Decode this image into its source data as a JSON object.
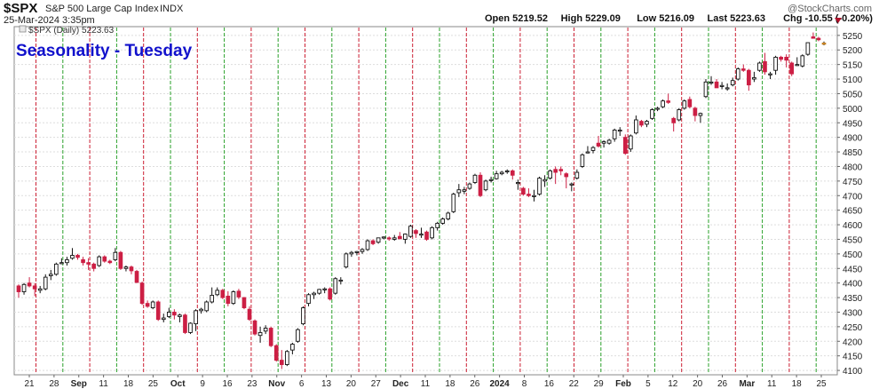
{
  "header": {
    "symbol": "$SPX",
    "name": "S&P 500 Large Cap Index",
    "exchange": "INDX",
    "date_time": "25-Mar-2024 3:35pm",
    "watermark": "@StockCharts.com",
    "stats": [
      {
        "label": "Open",
        "value": "5219.52"
      },
      {
        "label": "High",
        "value": "5229.09"
      },
      {
        "label": "Low",
        "value": "5216.09"
      },
      {
        "label": "Last",
        "value": "5223.63"
      },
      {
        "label": "Chg",
        "value": "-10.55 (-0.20%)"
      }
    ]
  },
  "chart_title": "Seasonality - Tuesday",
  "legend_text": "$SPX (Daily) 5223.63",
  "colors": {
    "up": "#ffffff",
    "down": "#cc1f44",
    "last_candle": "#e8a33c",
    "green_line": "#2aa12a",
    "red_line": "#cc1f33",
    "title": "#1111cc",
    "chg_arrow": "#b0102a"
  },
  "chart_data": {
    "type": "candlestick",
    "title": "Seasonality - Tuesday",
    "ylim": [
      4085,
      5280
    ],
    "y_ticks": [
      4100,
      4150,
      4200,
      4250,
      4300,
      4350,
      4400,
      4450,
      4500,
      4550,
      4600,
      4650,
      4700,
      4750,
      4800,
      4850,
      4900,
      4950,
      5000,
      5050,
      5100,
      5150,
      5200,
      5250
    ],
    "x_tick_labels": [
      "21",
      "28",
      "Sep",
      "11",
      "18",
      "25",
      "Oct",
      "9",
      "16",
      "23",
      "Nov",
      "6",
      "13",
      "20",
      "27",
      "Dec",
      "11",
      "18",
      "26",
      "2024",
      "8",
      "16",
      "22",
      "29",
      "Feb",
      "5",
      "12",
      "20",
      "26",
      "Mar",
      "11",
      "18",
      "25"
    ],
    "bold_x_labels": [
      "Sep",
      "Oct",
      "Nov",
      "Dec",
      "2024",
      "Feb",
      "Mar"
    ],
    "vertical_lines": {
      "green_color": "#2aa12a",
      "red_color": "#cc1f33",
      "pattern": "alternating dashed green and red lines at weekly intervals"
    },
    "candles": [
      [
        "Aug 18",
        4390,
        4395,
        4350,
        4370
      ],
      [
        "Aug 21",
        4370,
        4400,
        4360,
        4395
      ],
      [
        "Aug 22",
        4400,
        4420,
        4385,
        4390
      ],
      [
        "Aug 23",
        4390,
        4400,
        4355,
        4380
      ],
      [
        "Aug 24",
        4375,
        4390,
        4365,
        4380
      ],
      [
        "Aug 25",
        4380,
        4430,
        4375,
        4420
      ],
      [
        "Aug 28",
        4425,
        4445,
        4410,
        4430
      ],
      [
        "Aug 29",
        4430,
        4470,
        4425,
        4465
      ],
      [
        "Aug 30",
        4470,
        4485,
        4465,
        4470
      ],
      [
        "Aug 31",
        4470,
        4490,
        4460,
        4480
      ],
      [
        "Sep 1",
        4485,
        4520,
        4480,
        4495
      ],
      [
        "Sep 5",
        4495,
        4500,
        4480,
        4488
      ],
      [
        "Sep 6",
        4480,
        4490,
        4460,
        4470
      ],
      [
        "Sep 7",
        4470,
        4485,
        4445,
        4465
      ],
      [
        "Sep 8",
        4465,
        4470,
        4440,
        4450
      ],
      [
        "Sep 11",
        4460,
        4495,
        4455,
        4490
      ],
      [
        "Sep 12",
        4490,
        4495,
        4470,
        4475
      ],
      [
        "Sep 13",
        4475,
        4480,
        4465,
        4470
      ],
      [
        "Sep 14",
        4480,
        4520,
        4475,
        4505
      ],
      [
        "Sep 15",
        4505,
        4510,
        4445,
        4450
      ],
      [
        "Sep 18",
        4450,
        4460,
        4440,
        4455
      ],
      [
        "Sep 19",
        4455,
        4460,
        4430,
        4442
      ],
      [
        "Sep 20",
        4440,
        4445,
        4400,
        4402
      ],
      [
        "Sep 21",
        4400,
        4405,
        4325,
        4330
      ],
      [
        "Sep 22",
        4330,
        4340,
        4315,
        4320
      ],
      [
        "Sep 25",
        4315,
        4340,
        4310,
        4335
      ],
      [
        "Sep 26",
        4335,
        4340,
        4270,
        4275
      ],
      [
        "Sep 27",
        4275,
        4295,
        4265,
        4280
      ],
      [
        "Sep 28",
        4285,
        4315,
        4280,
        4300
      ],
      [
        "Sep 29",
        4300,
        4310,
        4275,
        4290
      ],
      [
        "Oct 2",
        4285,
        4295,
        4265,
        4290
      ],
      [
        "Oct 3",
        4290,
        4295,
        4225,
        4230
      ],
      [
        "Oct 4",
        4230,
        4265,
        4225,
        4262
      ],
      [
        "Oct 5",
        4260,
        4310,
        4235,
        4305
      ],
      [
        "Oct 6",
        4305,
        4315,
        4295,
        4310
      ],
      [
        "Oct 9",
        4305,
        4340,
        4300,
        4335
      ],
      [
        "Oct 10",
        4335,
        4385,
        4330,
        4358
      ],
      [
        "Oct 11",
        4360,
        4385,
        4355,
        4375
      ],
      [
        "Oct 12",
        4375,
        4380,
        4345,
        4350
      ],
      [
        "Oct 13",
        4355,
        4372,
        4320,
        4330
      ],
      [
        "Oct 16",
        4330,
        4375,
        4325,
        4370
      ],
      [
        "Oct 17",
        4372,
        4380,
        4345,
        4352
      ],
      [
        "Oct 18",
        4350,
        4352,
        4310,
        4315
      ],
      [
        "Oct 19",
        4310,
        4320,
        4270,
        4275
      ],
      [
        "Oct 20",
        4270,
        4275,
        4220,
        4225
      ],
      [
        "Oct 23",
        4220,
        4250,
        4195,
        4230
      ],
      [
        "Oct 24",
        4235,
        4255,
        4225,
        4245
      ],
      [
        "Oct 25",
        4245,
        4250,
        4180,
        4185
      ],
      [
        "Oct 26",
        4185,
        4190,
        4130,
        4135
      ],
      [
        "Oct 27",
        4135,
        4170,
        4105,
        4120
      ],
      [
        "Oct 30",
        4120,
        4170,
        4115,
        4165
      ],
      [
        "Oct 31",
        4170,
        4195,
        4155,
        4190
      ],
      [
        "Nov 1",
        4200,
        4245,
        4195,
        4240
      ],
      [
        "Nov 2",
        4260,
        4320,
        4255,
        4315
      ],
      [
        "Nov 3",
        4330,
        4365,
        4320,
        4360
      ],
      [
        "Nov 6",
        4360,
        4370,
        4345,
        4365
      ],
      [
        "Nov 7",
        4365,
        4380,
        4360,
        4378
      ],
      [
        "Nov 8",
        4380,
        4385,
        4365,
        4380
      ],
      [
        "Nov 9",
        4380,
        4385,
        4340,
        4345
      ],
      [
        "Nov 10",
        4365,
        4420,
        4360,
        4415
      ],
      [
        "Nov 13",
        4410,
        4420,
        4395,
        4410
      ],
      [
        "Nov 14",
        4455,
        4505,
        4450,
        4500
      ],
      [
        "Nov 15",
        4500,
        4510,
        4490,
        4505
      ],
      [
        "Nov 16",
        4505,
        4510,
        4495,
        4508
      ],
      [
        "Nov 17",
        4508,
        4520,
        4500,
        4515
      ],
      [
        "Nov 20",
        4515,
        4550,
        4510,
        4545
      ],
      [
        "Nov 21",
        4545,
        4550,
        4530,
        4535
      ],
      [
        "Nov 22",
        4540,
        4555,
        4535,
        4555
      ],
      [
        "Nov 24",
        4555,
        4560,
        4550,
        4558
      ],
      [
        "Nov 27",
        4555,
        4560,
        4545,
        4552
      ],
      [
        "Nov 28",
        4550,
        4565,
        4545,
        4555
      ],
      [
        "Nov 29",
        4560,
        4575,
        4550,
        4552
      ],
      [
        "Nov 30",
        4550,
        4570,
        4535,
        4568
      ],
      [
        "Dec 1",
        4560,
        4600,
        4555,
        4595
      ],
      [
        "Dec 4",
        4580,
        4585,
        4555,
        4570
      ],
      [
        "Dec 5",
        4565,
        4590,
        4555,
        4568
      ],
      [
        "Dec 6",
        4575,
        4580,
        4545,
        4550
      ],
      [
        "Dec 7",
        4555,
        4595,
        4550,
        4590
      ],
      [
        "Dec 8",
        4590,
        4610,
        4580,
        4605
      ],
      [
        "Dec 11",
        4605,
        4625,
        4600,
        4620
      ],
      [
        "Dec 12",
        4620,
        4645,
        4615,
        4640
      ],
      [
        "Dec 13",
        4645,
        4710,
        4640,
        4705
      ],
      [
        "Dec 14",
        4710,
        4740,
        4695,
        4720
      ],
      [
        "Dec 15",
        4715,
        4730,
        4705,
        4720
      ],
      [
        "Dec 18",
        4725,
        4745,
        4720,
        4740
      ],
      [
        "Dec 19",
        4745,
        4775,
        4740,
        4770
      ],
      [
        "Dec 20",
        4770,
        4780,
        4695,
        4700
      ],
      [
        "Dec 21",
        4720,
        4755,
        4715,
        4750
      ],
      [
        "Dec 22",
        4755,
        4765,
        4745,
        4755
      ],
      [
        "Dec 26",
        4758,
        4785,
        4755,
        4775
      ],
      [
        "Dec 27",
        4775,
        4785,
        4770,
        4780
      ],
      [
        "Dec 28",
        4782,
        4790,
        4775,
        4785
      ],
      [
        "Dec 29",
        4785,
        4790,
        4755,
        4770
      ],
      [
        "Jan 2",
        4745,
        4755,
        4720,
        4745
      ],
      [
        "Jan 3",
        4725,
        4730,
        4700,
        4705
      ],
      [
        "Jan 4",
        4705,
        4725,
        4695,
        4700
      ],
      [
        "Jan 5",
        4700,
        4720,
        4680,
        4700
      ],
      [
        "Jan 8",
        4705,
        4765,
        4700,
        4760
      ],
      [
        "Jan 9",
        4750,
        4770,
        4730,
        4755
      ],
      [
        "Jan 10",
        4760,
        4790,
        4755,
        4785
      ],
      [
        "Jan 11",
        4790,
        4800,
        4740,
        4780
      ],
      [
        "Jan 12",
        4790,
        4800,
        4770,
        4785
      ],
      [
        "Jan 16",
        4775,
        4780,
        4725,
        4765
      ],
      [
        "Jan 17",
        4740,
        4745,
        4715,
        4740
      ],
      [
        "Jan 18",
        4760,
        4790,
        4755,
        4780
      ],
      [
        "Jan 19",
        4800,
        4845,
        4795,
        4840
      ],
      [
        "Jan 22",
        4850,
        4870,
        4845,
        4850
      ],
      [
        "Jan 23",
        4855,
        4870,
        4845,
        4865
      ],
      [
        "Jan 24",
        4880,
        4905,
        4865,
        4870
      ],
      [
        "Jan 25",
        4880,
        4890,
        4865,
        4885
      ],
      [
        "Jan 26",
        4880,
        4895,
        4875,
        4890
      ],
      [
        "Jan 29",
        4895,
        4930,
        4885,
        4925
      ],
      [
        "Jan 30",
        4925,
        4935,
        4905,
        4925
      ],
      [
        "Jan 31",
        4900,
        4910,
        4840,
        4845
      ],
      [
        "Feb 1",
        4860,
        4910,
        4850,
        4905
      ],
      [
        "Feb 2",
        4915,
        4975,
        4910,
        4960
      ],
      [
        "Feb 5",
        4955,
        4960,
        4935,
        4942
      ],
      [
        "Feb 6",
        4945,
        4960,
        4935,
        4955
      ],
      [
        "Feb 7",
        4965,
        5000,
        4960,
        4995
      ],
      [
        "Feb 8",
        5000,
        5005,
        4990,
        5000
      ],
      [
        "Feb 9",
        5005,
        5030,
        5000,
        5025
      ],
      [
        "Feb 12",
        5025,
        5050,
        5015,
        5020
      ],
      [
        "Feb 13",
        4965,
        4970,
        4920,
        4950
      ],
      [
        "Feb 14",
        4960,
        5000,
        4955,
        4995
      ],
      [
        "Feb 15",
        5000,
        5030,
        4995,
        5025
      ],
      [
        "Feb 16",
        5030,
        5040,
        5000,
        5005
      ],
      [
        "Feb 20",
        5000,
        5005,
        4955,
        4975
      ],
      [
        "Feb 21",
        4975,
        4985,
        4950,
        4982
      ],
      [
        "Feb 22",
        5040,
        5100,
        5035,
        5090
      ],
      [
        "Feb 23",
        5090,
        5110,
        5080,
        5090
      ],
      [
        "Feb 26",
        5090,
        5100,
        5070,
        5070
      ],
      [
        "Feb 27",
        5075,
        5090,
        5065,
        5078
      ],
      [
        "Feb 28",
        5070,
        5085,
        5060,
        5070
      ],
      [
        "Feb 29",
        5080,
        5105,
        5075,
        5095
      ],
      [
        "Mar 1",
        5100,
        5140,
        5095,
        5135
      ],
      [
        "Mar 4",
        5135,
        5150,
        5125,
        5130
      ],
      [
        "Mar 5",
        5130,
        5135,
        5060,
        5080
      ],
      [
        "Mar 6",
        5100,
        5125,
        5090,
        5105
      ],
      [
        "Mar 7",
        5130,
        5160,
        5125,
        5155
      ],
      [
        "Mar 8",
        5160,
        5190,
        5115,
        5125
      ],
      [
        "Mar 11",
        5115,
        5125,
        5100,
        5118
      ],
      [
        "Mar 12",
        5130,
        5180,
        5115,
        5175
      ],
      [
        "Mar 13",
        5175,
        5180,
        5160,
        5168
      ],
      [
        "Mar 14",
        5175,
        5185,
        5140,
        5165
      ],
      [
        "Mar 15",
        5155,
        5160,
        5110,
        5118
      ],
      [
        "Mar 18",
        5150,
        5175,
        5145,
        5150
      ],
      [
        "Mar 19",
        5145,
        5185,
        5140,
        5180
      ],
      [
        "Mar 20",
        5185,
        5225,
        5180,
        5225
      ],
      [
        "Mar 21",
        5245,
        5260,
        5240,
        5240
      ],
      [
        "Mar 22",
        5240,
        5245,
        5230,
        5235
      ],
      [
        "Mar 25",
        5219.52,
        5229.09,
        5216.09,
        5223.63
      ]
    ]
  }
}
